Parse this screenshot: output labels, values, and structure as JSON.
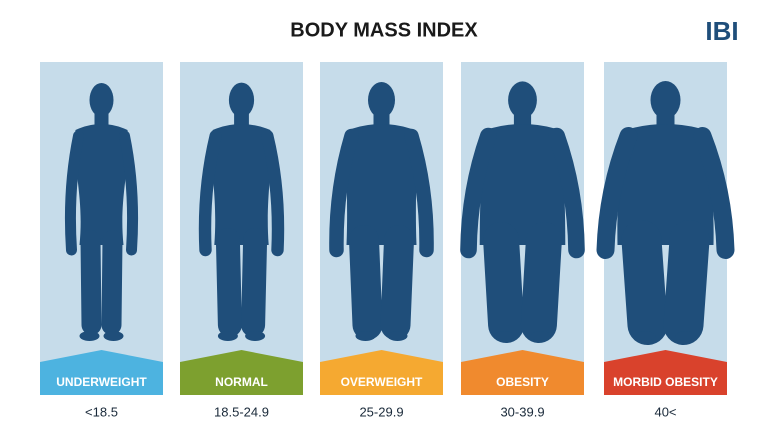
{
  "header": {
    "title": "BODY MASS INDEX",
    "logo": "IBI"
  },
  "panels": [
    {
      "label": "UNDERWEIGHT",
      "range": "<18.5"
    },
    {
      "label": "NORMAL",
      "range": "18.5-24.9"
    },
    {
      "label": "OVERWEIGHT",
      "range": "25-29.9"
    },
    {
      "label": "OBESITY",
      "range": "30-39.9"
    },
    {
      "label": "MORBID OBESITY",
      "range": "40<"
    }
  ]
}
